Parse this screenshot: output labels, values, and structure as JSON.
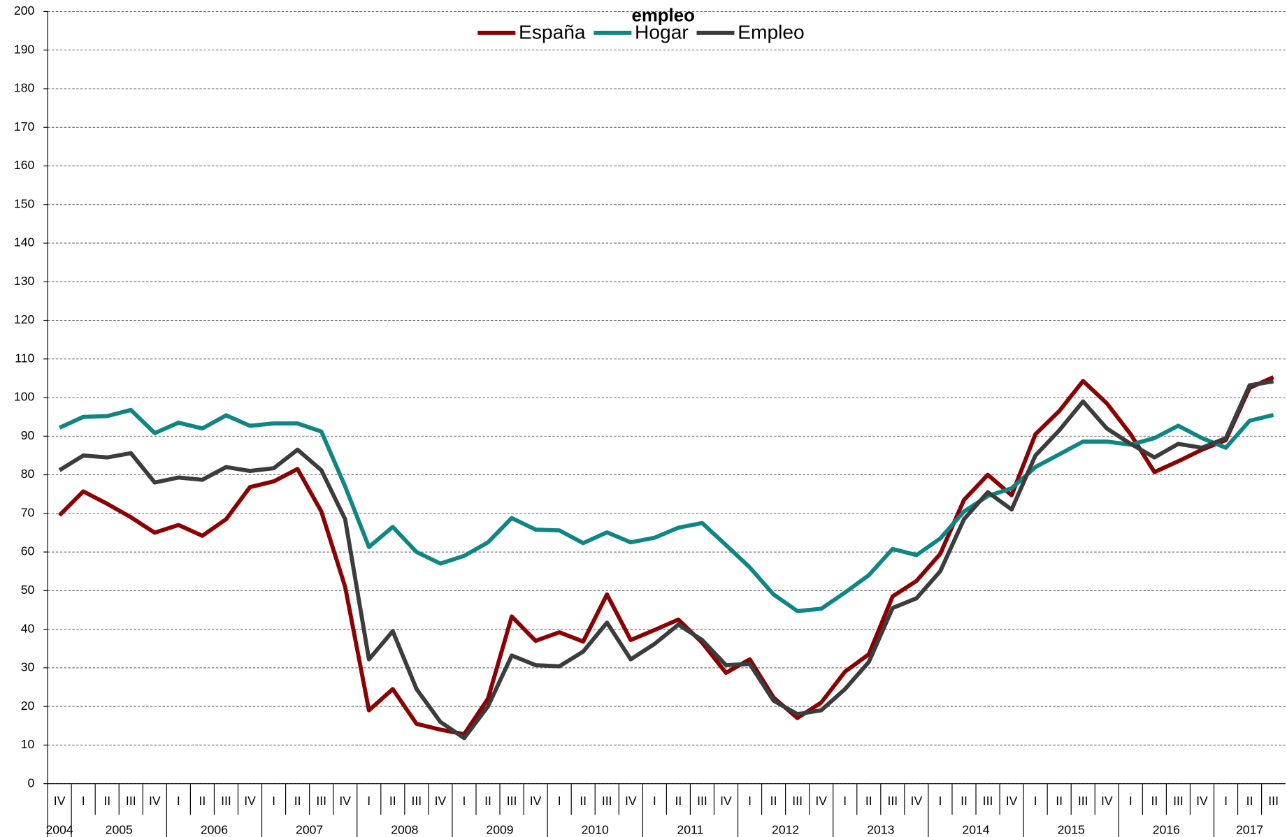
{
  "chart_data": {
    "type": "line",
    "title": "empleo",
    "categories": [
      "IV",
      "I",
      "II",
      "III",
      "IV",
      "I",
      "II",
      "III",
      "IV",
      "I",
      "II",
      "III",
      "IV",
      "I",
      "II",
      "III",
      "IV",
      "I",
      "II",
      "III",
      "IV",
      "I",
      "II",
      "III",
      "IV",
      "I",
      "II",
      "III",
      "IV",
      "I",
      "II",
      "III",
      "IV",
      "I",
      "II",
      "III",
      "IV",
      "I",
      "II",
      "III",
      "IV",
      "I",
      "II",
      "III",
      "IV",
      "I",
      "II",
      "III",
      "IV",
      "I",
      "II",
      "III"
    ],
    "category_groups": [
      "2004",
      "2005",
      "2006",
      "2007",
      "2008",
      "2009",
      "2010",
      "2011",
      "2012",
      "2013",
      "2014",
      "2015",
      "2016",
      "2017"
    ],
    "series": [
      {
        "name": "España",
        "color": "#8b0000",
        "values": [
          69.5,
          75.7,
          72.5,
          69,
          65,
          67,
          64.2,
          68.5,
          76.8,
          78.3,
          81.5,
          70.5,
          51,
          19,
          24.5,
          15.5,
          14,
          12.8,
          22,
          43.3,
          37,
          39.2,
          36.8,
          49,
          37.2,
          39.8,
          42.5,
          36.5,
          28.7,
          32.2,
          22.3,
          17,
          21,
          29,
          33.5,
          48.5,
          52.5,
          59.5,
          73.5,
          80,
          74.7,
          90.5,
          96.5,
          104.3,
          98.5,
          90.5,
          80.7,
          83.5,
          86.5,
          89,
          102.5,
          105.3
        ]
      },
      {
        "name": "Hogar",
        "color": "#108585",
        "values": [
          92.2,
          95,
          95.2,
          96.8,
          90.8,
          93.5,
          92,
          95.4,
          92.7,
          93.3,
          93.3,
          91.2,
          77,
          61.3,
          66.5,
          60,
          57,
          59,
          62.5,
          68.8,
          65.8,
          65.6,
          62.3,
          65.1,
          62.5,
          63.7,
          66.3,
          67.5,
          61.8,
          56,
          49,
          44.7,
          45.3,
          49.5,
          54,
          60.8,
          59.2,
          63.5,
          70.5,
          74.5,
          76.5,
          82,
          85.3,
          88.6,
          88.6,
          87.8,
          89.5,
          92.7,
          89.5,
          87,
          94,
          95.5
        ]
      },
      {
        "name": "Empleo",
        "color": "#3c3c3c",
        "values": [
          81.2,
          85,
          84.5,
          85.6,
          78,
          79.3,
          78.7,
          82,
          81,
          81.7,
          86.5,
          81.2,
          68.5,
          32.2,
          39.5,
          24.5,
          16,
          11.8,
          20,
          33.2,
          30.7,
          30.4,
          34.2,
          41.7,
          32.2,
          36.2,
          41.2,
          37.2,
          30.7,
          31,
          21.5,
          18,
          19,
          24.5,
          31.5,
          45.5,
          48,
          55,
          68.5,
          75.5,
          71,
          85,
          91.5,
          99,
          92,
          88,
          84.5,
          88,
          87,
          89.5,
          103.2,
          104.2
        ]
      }
    ],
    "ylim": [
      0,
      200
    ],
    "yticks": [
      0,
      10,
      20,
      30,
      40,
      50,
      60,
      70,
      80,
      90,
      100,
      110,
      120,
      130,
      140,
      150,
      160,
      170,
      180,
      190,
      200
    ],
    "grid": true,
    "legend": "top"
  }
}
